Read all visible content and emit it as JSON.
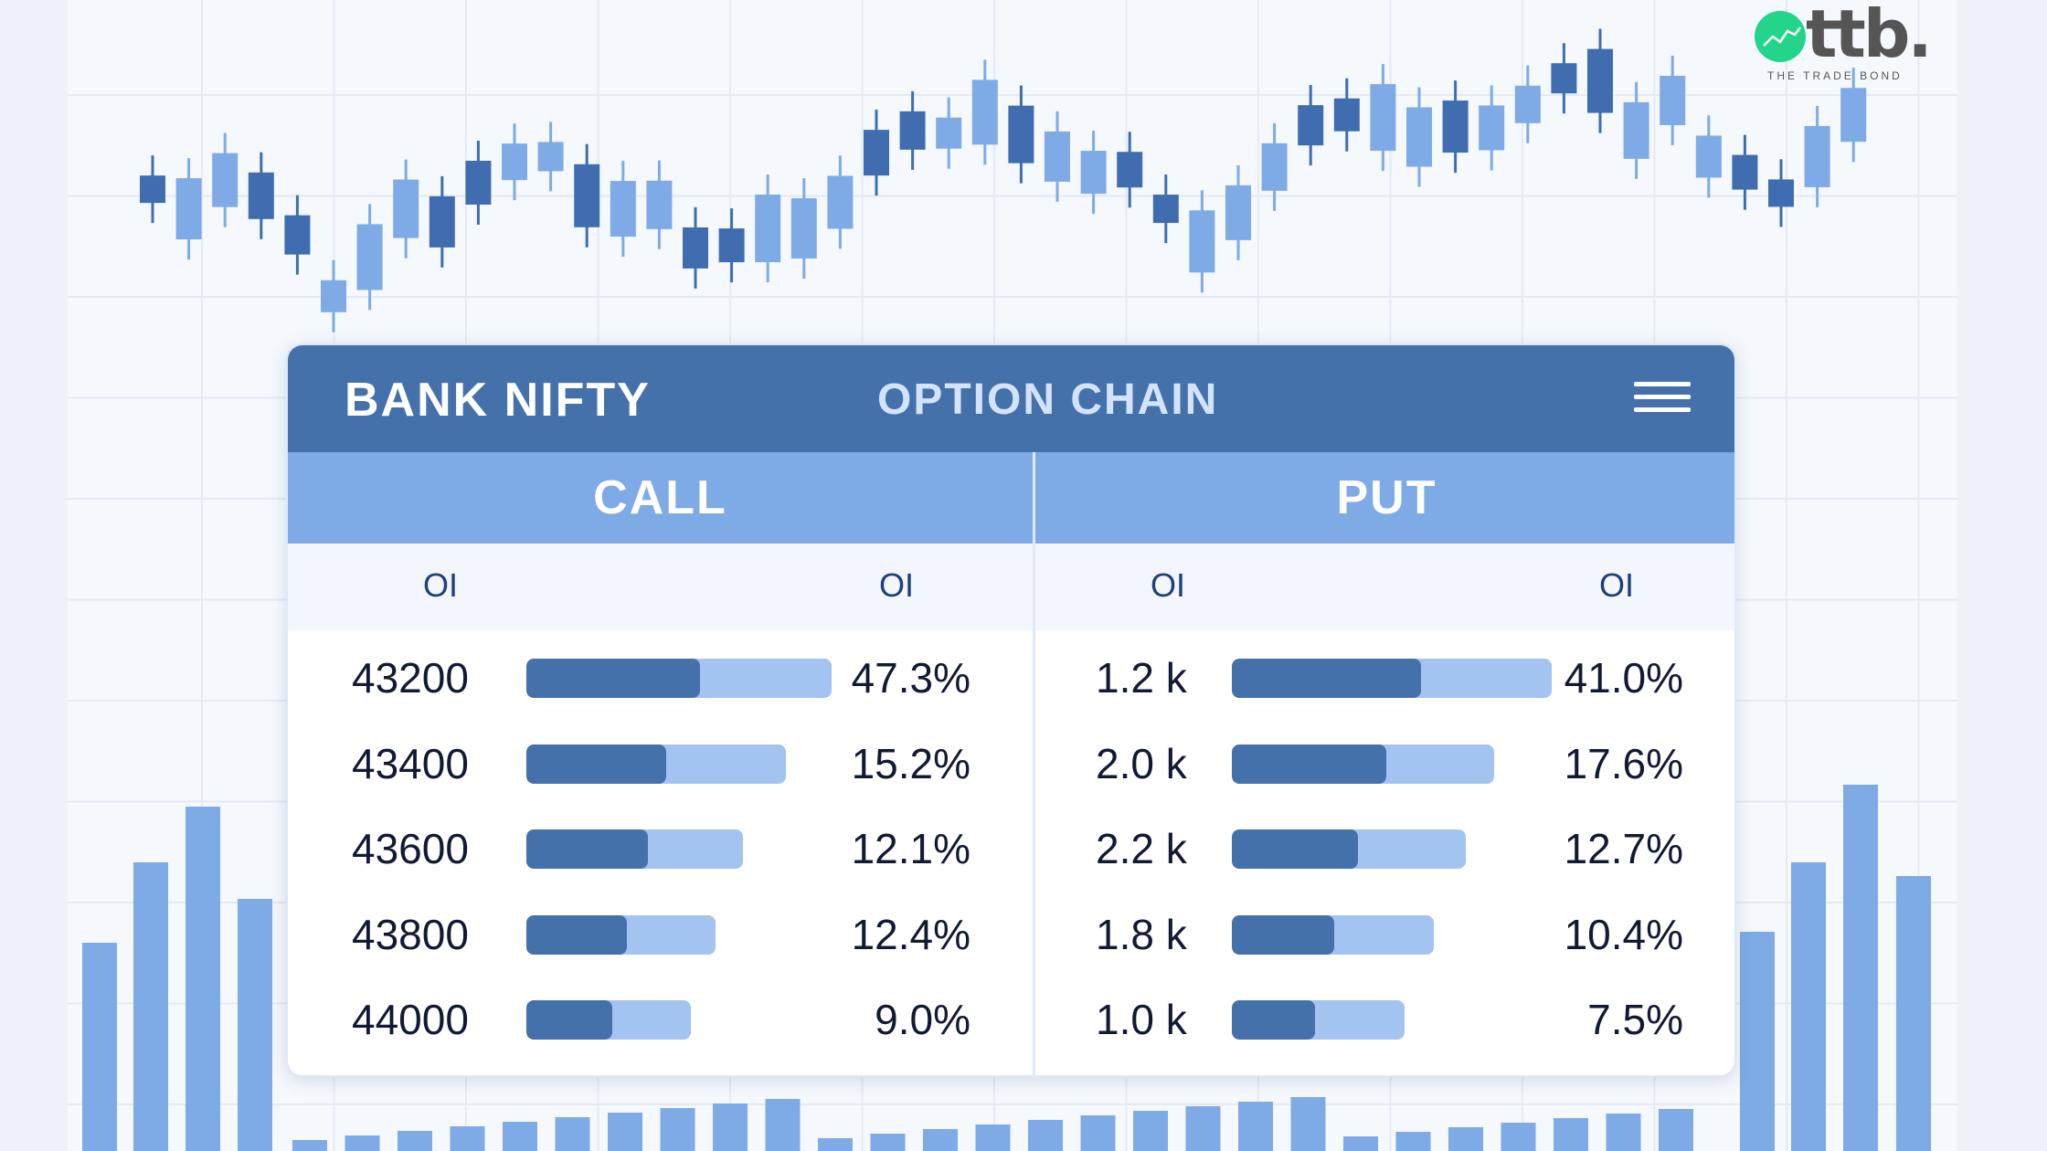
{
  "logo": {
    "text": "ttb.",
    "tagline": "THE TRADE BOND"
  },
  "header": {
    "title": "BANK NIFTY",
    "subtitle": "OPTION CHAIN",
    "menu_icon": "hamburger-menu-icon"
  },
  "columns": {
    "call": "CALL",
    "put": "PUT",
    "call_left": "OI",
    "call_right": "OI",
    "put_left": "OI",
    "put_right": "OI"
  },
  "colors": {
    "header": "#4571ab",
    "band": "#7eaae6",
    "bar_dark": "#4571ab",
    "bar_light": "#a3c3f0",
    "logo_green": "#22d58a"
  },
  "rows": [
    {
      "strike": "43200",
      "call_pct": "47.3%",
      "call_bar": {
        "total": 1.0,
        "fill": 0.57
      },
      "put_oi": "1.2 k",
      "put_pct": "41.0%",
      "put_bar": {
        "total": 1.0,
        "fill": 0.59
      }
    },
    {
      "strike": "43400",
      "call_pct": "15.2%",
      "call_bar": {
        "total": 0.85,
        "fill": 0.54
      },
      "put_oi": "2.0 k",
      "put_pct": "17.6%",
      "put_bar": {
        "total": 0.82,
        "fill": 0.59
      }
    },
    {
      "strike": "43600",
      "call_pct": "12.1%",
      "call_bar": {
        "total": 0.71,
        "fill": 0.56
      },
      "put_oi": "2.2 k",
      "put_pct": "12.7%",
      "put_bar": {
        "total": 0.73,
        "fill": 0.54
      }
    },
    {
      "strike": "43800",
      "call_pct": "12.4%",
      "call_bar": {
        "total": 0.62,
        "fill": 0.53
      },
      "put_oi": "1.8 k",
      "put_pct": "10.4%",
      "put_bar": {
        "total": 0.63,
        "fill": 0.51
      }
    },
    {
      "strike": "44000",
      "call_pct": "9.0%",
      "call_bar": {
        "total": 0.54,
        "fill": 0.52
      },
      "put_oi": "1.0 k",
      "put_pct": "7.5%",
      "put_bar": {
        "total": 0.54,
        "fill": 0.48
      }
    }
  ]
}
